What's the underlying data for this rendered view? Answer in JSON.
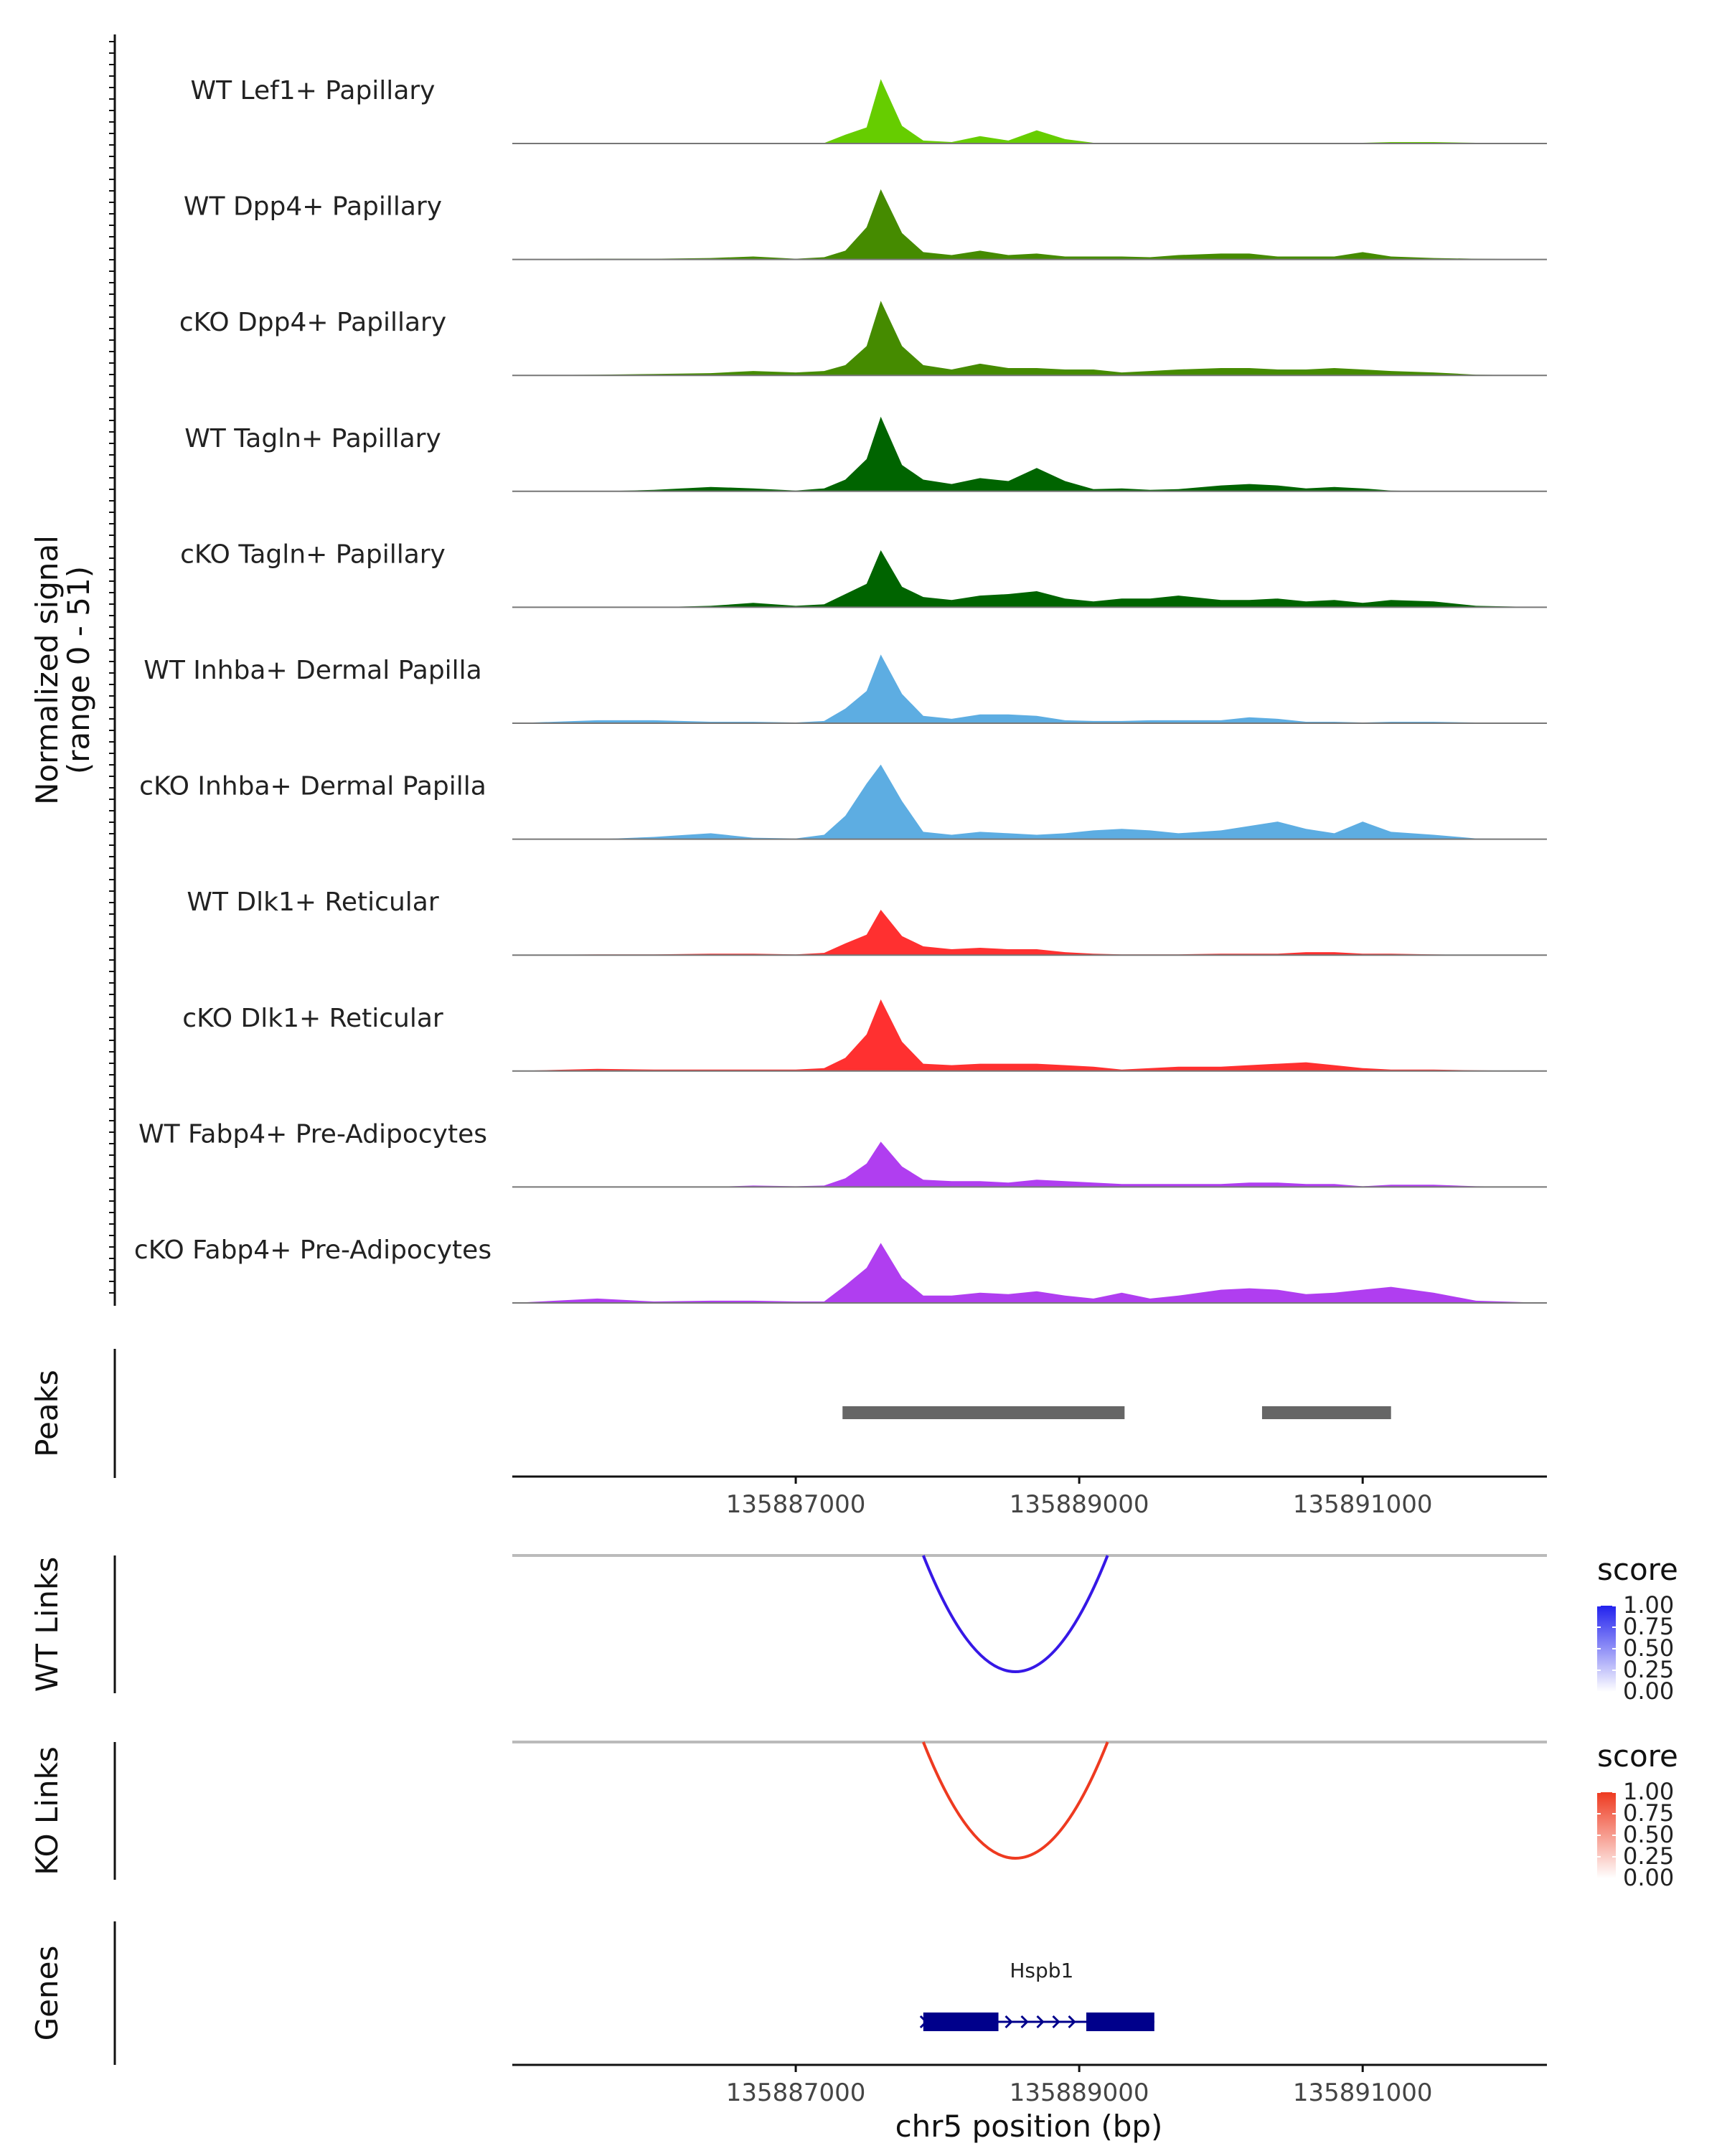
{
  "chart_data": {
    "type": "area",
    "title": "",
    "region": {
      "chromosome": "chr5",
      "start": 135885000,
      "end": 135892300
    },
    "coverage": {
      "ylabel": "Normalized signal",
      "ylabel_range": "(range 0 - 51)",
      "ylim": [
        0,
        51
      ],
      "positions": [
        135885000,
        135885600,
        135886000,
        135886400,
        135886700,
        135887000,
        135887200,
        135887350,
        135887500,
        135887600,
        135887750,
        135887900,
        135888100,
        135888300,
        135888500,
        135888700,
        135888900,
        135889100,
        135889300,
        135889500,
        135889700,
        135890000,
        135890200,
        135890400,
        135890600,
        135890800,
        135891000,
        135891200,
        135891500,
        135891800,
        135892300
      ],
      "tracks": [
        {
          "name": "WT Lef1+ Papillary",
          "color": "#66cd00",
          "values": [
            0,
            0,
            0,
            0,
            0,
            0,
            0.3,
            6,
            11,
            44,
            12,
            2,
            1,
            5,
            2,
            9,
            3,
            0.5,
            0.5,
            0.5,
            0.3,
            0.3,
            0.3,
            0.3,
            0.5,
            0.5,
            0.5,
            1,
            1,
            0.5,
            0
          ]
        },
        {
          "name": "WT Dpp4+ Papillary",
          "color": "#458b00",
          "values": [
            0,
            0.5,
            0.5,
            1,
            2,
            0.5,
            1.5,
            6,
            22,
            48,
            18,
            5,
            3,
            6,
            3,
            4,
            2,
            2,
            2,
            1.5,
            3,
            4,
            4,
            2,
            2,
            2,
            5,
            2,
            1,
            0.5,
            0
          ]
        },
        {
          "name": "cKO Dpp4+ Papillary",
          "color": "#458b00",
          "values": [
            0,
            0.5,
            1,
            1.5,
            3,
            2,
            3,
            7,
            20,
            51,
            20,
            7,
            4,
            8,
            5,
            5,
            4,
            4,
            2,
            3,
            4,
            5,
            5,
            4,
            4,
            5,
            4,
            3,
            2,
            0.5,
            0
          ]
        },
        {
          "name": "WT Tagln+ Papillary",
          "color": "#006400",
          "values": [
            0,
            0,
            1,
            3,
            2,
            0.5,
            2,
            8,
            22,
            51,
            18,
            8,
            5,
            9,
            7,
            16,
            7,
            1.5,
            2,
            1,
            1.5,
            4,
            5,
            4,
            2,
            3,
            2,
            0.5,
            0,
            0,
            0
          ]
        },
        {
          "name": "cKO Tagln+ Papillary",
          "color": "#006400",
          "values": [
            0,
            0,
            0,
            1,
            3,
            1,
            2,
            9,
            16,
            39,
            14,
            7,
            5,
            8,
            9,
            11,
            6,
            4,
            6,
            6,
            8,
            5,
            5,
            6,
            4,
            5,
            3,
            5,
            4,
            1,
            0
          ]
        },
        {
          "name": "WT Inhba+ Dermal Papilla",
          "color": "#5dade2",
          "values": [
            0,
            2,
            2,
            1,
            1,
            0.5,
            1.5,
            10,
            22,
            47,
            20,
            5,
            3,
            6,
            6,
            5,
            2,
            1.5,
            1.5,
            2,
            2,
            2,
            4,
            3,
            1,
            1,
            0.5,
            1,
            1,
            0.5,
            0
          ]
        },
        {
          "name": "cKO Inhba+ Dermal Papilla",
          "color": "#5dade2",
          "values": [
            0,
            0,
            1.5,
            4,
            1,
            0.5,
            3,
            16,
            38,
            51,
            26,
            5,
            3,
            5,
            4,
            3,
            4,
            6,
            7,
            6,
            4,
            6,
            9,
            12,
            7,
            4,
            12,
            5,
            3,
            0.5,
            0
          ]
        },
        {
          "name": "WT Dlk1+ Reticular",
          "color": "#ff3030",
          "values": [
            0,
            0.5,
            0.5,
            1,
            1,
            0.5,
            1.5,
            8,
            14,
            31,
            13,
            6,
            4,
            5,
            4,
            4,
            2,
            1,
            0.5,
            0.5,
            0.5,
            1,
            1,
            1,
            2,
            2,
            1,
            1,
            0.5,
            0,
            0
          ]
        },
        {
          "name": "cKO Dlk1+ Reticular",
          "color": "#ff3030",
          "values": [
            0,
            1.5,
            1,
            1,
            1,
            1,
            2,
            9,
            25,
            49,
            20,
            5,
            4,
            5,
            5,
            5,
            4,
            3,
            1,
            2,
            3,
            3,
            4,
            5,
            6,
            4,
            2,
            1,
            1,
            0.5,
            0
          ]
        },
        {
          "name": "WT Fabp4+ Pre-Adipocytes",
          "color": "#b03ef0",
          "values": [
            0,
            0,
            0,
            0,
            1,
            0.5,
            1,
            6,
            16,
            31,
            14,
            5,
            4,
            4,
            3,
            5,
            4,
            3,
            2,
            2,
            2,
            2,
            3,
            3,
            2,
            2,
            0.5,
            1.5,
            1.5,
            0.5,
            0
          ]
        },
        {
          "name": "cKO Fabp4+ Pre-Adipocytes",
          "color": "#b03ef0",
          "values": [
            0,
            3,
            1,
            1.5,
            1.5,
            1,
            1,
            12,
            24,
            41,
            17,
            5,
            5,
            7,
            6,
            8,
            5,
            3,
            7,
            3,
            5,
            9,
            10,
            9,
            6,
            7,
            9,
            11,
            7,
            1.5,
            0
          ]
        }
      ]
    },
    "peaks": {
      "label": "Peaks",
      "ranges": [
        [
          135887330,
          135889320
        ],
        [
          135890290,
          135891200
        ]
      ],
      "color": "#666666"
    },
    "axis": {
      "ticks": [
        135887000,
        135889000,
        135891000
      ],
      "tick_labels": [
        "135887000",
        "135889000",
        "135891000"
      ],
      "xlabel": "chr5 position (bp)"
    },
    "links": [
      {
        "label": "WT Links",
        "start": 135887900,
        "end": 135889200,
        "score": 0.9,
        "color": "#3618e6",
        "legend_title": "score",
        "legend_ticks": [
          "1.00",
          "0.75",
          "0.50",
          "0.25",
          "0.00"
        ],
        "scale_color": "#2222ee"
      },
      {
        "label": "KO Links",
        "start": 135887900,
        "end": 135889200,
        "score": 0.9,
        "color": "#ee3a20",
        "legend_title": "score",
        "legend_ticks": [
          "1.00",
          "0.75",
          "0.50",
          "0.25",
          "0.00"
        ],
        "scale_color": "#ee3a20"
      }
    ],
    "genes": {
      "label": "Genes",
      "items": [
        {
          "name": "Hspb1",
          "start": 135887900,
          "end": 135889530,
          "strand": "+",
          "exons": [
            [
              135887900,
              135888430
            ],
            [
              135889050,
              135889530
            ]
          ],
          "color": "#00008b"
        }
      ]
    }
  }
}
